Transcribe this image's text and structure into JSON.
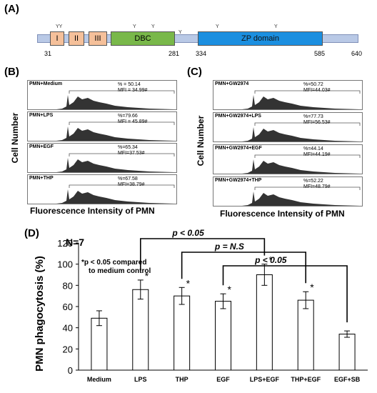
{
  "panelA": {
    "label": "(A)",
    "domains": [
      {
        "name": "I",
        "color": "#f5c09a"
      },
      {
        "name": "II",
        "color": "#f5c09a"
      },
      {
        "name": "III",
        "color": "#f5c09a"
      },
      {
        "name": "DBC",
        "color": "#79b84a"
      },
      {
        "name": "ZP domain",
        "color": "#1b8fe0"
      }
    ],
    "positions": [
      "31",
      "281",
      "334",
      "585",
      "640"
    ],
    "glyco_mark": "Y",
    "glyco_pair": "YY"
  },
  "panelB": {
    "label": "(B)",
    "ylabel": "Cell Number",
    "xlabel": "Fluorescence Intensity of PMN",
    "histograms": [
      {
        "name": "PMN+Medium",
        "pct": "% = 50.14",
        "mfi": "MFI = 34.99#"
      },
      {
        "name": "PMN+LPS",
        "pct": "%=79.66",
        "mfi": "MFI = 45.89#"
      },
      {
        "name": "PMN+EGF",
        "pct": "%=65.34",
        "mfi": "MFI=37.53#"
      },
      {
        "name": "PMN+THP",
        "pct": "%=67.58",
        "mfi": "MFI=38.79#"
      }
    ]
  },
  "panelC": {
    "label": "(C)",
    "ylabel": "Cell Number",
    "xlabel": "Fluorescence Intensity of PMN",
    "histograms": [
      {
        "name": "PMN+GW2974",
        "pct": "%=50.72",
        "mfi": "MFI=44.03#"
      },
      {
        "name": "PMN+GW2974+LPS",
        "pct": "%=77.73",
        "mfi": "MFI=56.53#"
      },
      {
        "name": "PMN+GW2974+EGF",
        "pct": "%=44.14",
        "mfi": "MFI=44.19#"
      },
      {
        "name": "PMN+GW2974+THP",
        "pct": "%=52.22",
        "mfi": "MFI=48.79#"
      }
    ]
  },
  "panelD": {
    "label": "(D)",
    "n_label": "N=7",
    "note_line1": "*p < 0.05 compared",
    "note_line2": "to medium control",
    "bracket_labels": [
      "p < 0.05",
      "p = N.S",
      "p < 0.05"
    ],
    "star": "*"
  },
  "chart_data": {
    "type": "bar",
    "categories": [
      "Medium",
      "LPS",
      "THP",
      "EGF",
      "LPS+EGF",
      "THP+EGF",
      "EGF+SB"
    ],
    "values": [
      49,
      76,
      70,
      65,
      90,
      66,
      34
    ],
    "errors": [
      7,
      9,
      8,
      7,
      10,
      8,
      3
    ],
    "significant": [
      false,
      true,
      true,
      true,
      true,
      true,
      false
    ],
    "xlabel": "",
    "ylabel": "PMN phagocytosis (%)",
    "ylim": [
      0,
      120
    ],
    "yticks": [
      "0",
      "20",
      "40",
      "60",
      "80",
      "100",
      "120"
    ],
    "grid": false,
    "legend": "none"
  }
}
